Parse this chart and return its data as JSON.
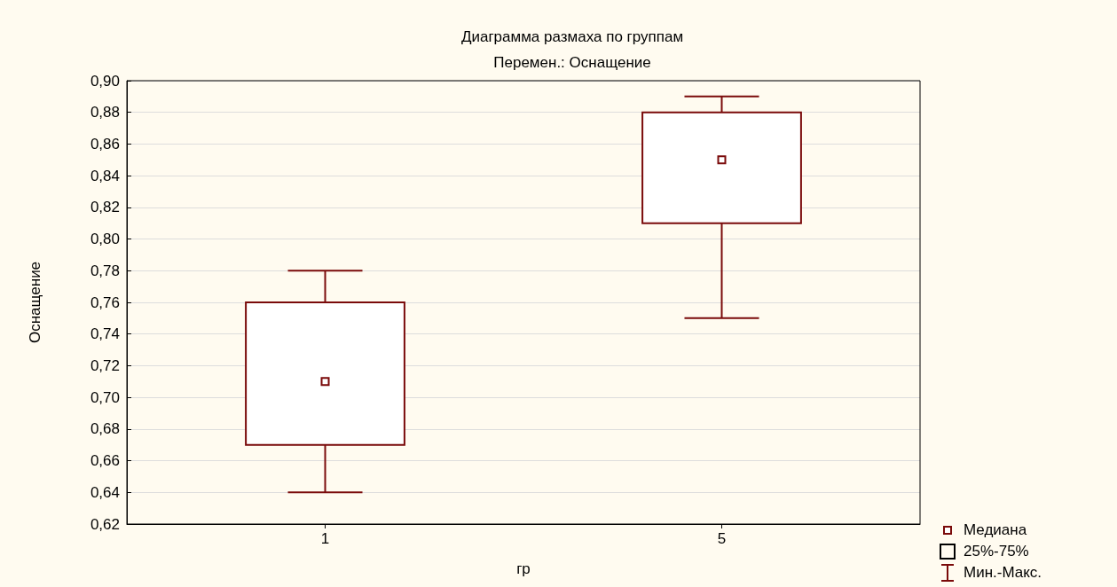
{
  "chart_data": {
    "type": "box",
    "title": "Диаграмма размаха по группам",
    "subtitle": "Перемен.: Оснащение",
    "xlabel": "гр",
    "ylabel": "Оснащение",
    "categories": [
      "1",
      "5"
    ],
    "series": [
      {
        "color": "#7a0a0a",
        "boxes": [
          {
            "low": 0.64,
            "q1": 0.67,
            "median": 0.71,
            "q3": 0.76,
            "high": 0.78
          },
          {
            "low": 0.75,
            "q1": 0.81,
            "median": 0.85,
            "q3": 0.88,
            "high": 0.89
          }
        ]
      }
    ],
    "annotations": [
      "Медиана",
      "25%-75%",
      "Мин.-Макс."
    ],
    "ylim": [
      0.62,
      0.9
    ],
    "yticks": [
      {
        "value": 0.62,
        "label": "0,62"
      },
      {
        "value": 0.64,
        "label": "0,64"
      },
      {
        "value": 0.66,
        "label": "0,66"
      },
      {
        "value": 0.68,
        "label": "0,68"
      },
      {
        "value": 0.7,
        "label": "0,70"
      },
      {
        "value": 0.72,
        "label": "0,72"
      },
      {
        "value": 0.74,
        "label": "0,74"
      },
      {
        "value": 0.76,
        "label": "0,76"
      },
      {
        "value": 0.78,
        "label": "0,78"
      },
      {
        "value": 0.8,
        "label": "0,80"
      },
      {
        "value": 0.82,
        "label": "0,82"
      },
      {
        "value": 0.84,
        "label": "0,84"
      },
      {
        "value": 0.86,
        "label": "0,86"
      },
      {
        "value": 0.88,
        "label": "0,88"
      },
      {
        "value": 0.9,
        "label": "0,90"
      }
    ],
    "grid": "y"
  }
}
